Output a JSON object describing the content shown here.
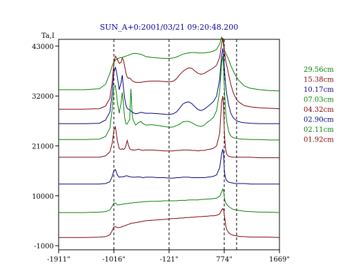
{
  "chart_data": {
    "type": "line",
    "title": "SUN_A+0:2001/03/21 09:20:48.200",
    "ylabel": "Ta,I",
    "xlabel": "",
    "xlim": [
      -1911,
      1669
    ],
    "ylim": [
      -1900,
      44500
    ],
    "x_ticks": [
      "-1911\"",
      "-1016\"",
      "-121\"",
      "774\"",
      "1669\""
    ],
    "x_tick_values": [
      -1911,
      -1016,
      -121,
      774,
      1669
    ],
    "y_ticks": [
      "43000",
      "32000",
      "21000",
      "10000",
      "-1000"
    ],
    "y_tick_values": [
      43000,
      32000,
      21000,
      10000,
      -1000
    ],
    "vlines": [
      -1016,
      -121,
      774,
      974
    ],
    "grid": false,
    "legend_position": "right",
    "x": [
      -1911,
      -1500,
      -1250,
      -1150,
      -1080,
      -1040,
      -1016,
      -990,
      -960,
      -930,
      -900,
      -880,
      -860,
      -840,
      -820,
      -800,
      -780,
      -760,
      -740,
      -720,
      -700,
      -660,
      -620,
      -580,
      -540,
      -500,
      -400,
      -300,
      -200,
      -121,
      -50,
      0,
      50,
      100,
      150,
      200,
      250,
      300,
      350,
      400,
      450,
      500,
      550,
      600,
      650,
      700,
      730,
      750,
      765,
      774,
      785,
      800,
      820,
      850,
      880,
      920,
      960,
      1000,
      1050,
      1100,
      1200,
      1350,
      1500,
      1669
    ],
    "series": [
      {
        "name": "29.56cm",
        "color": "#008000",
        "values": [
          33400,
          33400,
          33600,
          34600,
          37000,
          38800,
          39500,
          39900,
          40200,
          40400,
          40500,
          40500,
          40600,
          40700,
          40800,
          40900,
          41000,
          41100,
          41200,
          41300,
          41400,
          41400,
          41300,
          41200,
          41000,
          40700,
          40500,
          40400,
          40300,
          40300,
          40400,
          40600,
          40900,
          41200,
          41400,
          41500,
          41600,
          41600,
          41500,
          41500,
          41500,
          41600,
          41700,
          41900,
          42300,
          43500,
          45000,
          44300,
          42800,
          42100,
          41800,
          41400,
          40800,
          39900,
          38700,
          37500,
          36500,
          35600,
          34900,
          34200,
          33700,
          33400,
          33200,
          33100
        ]
      },
      {
        "name": "15.38cm",
        "color": "#800000",
        "values": [
          29100,
          29100,
          29200,
          29800,
          31500,
          35500,
          39200,
          40800,
          40100,
          39200,
          39400,
          40400,
          39900,
          38500,
          37100,
          36200,
          35900,
          36000,
          35700,
          35400,
          35200,
          35000,
          35000,
          35000,
          35100,
          35200,
          35300,
          35300,
          35200,
          35100,
          35300,
          35800,
          36700,
          37400,
          37900,
          38200,
          38100,
          37500,
          37000,
          36800,
          37000,
          37400,
          37800,
          38200,
          38800,
          40500,
          43500,
          44800,
          43600,
          42600,
          40900,
          39600,
          38400,
          36400,
          34600,
          32700,
          31600,
          30800,
          30300,
          29900,
          29600,
          29400,
          29300,
          29200
        ]
      },
      {
        "name": "10.17cm",
        "color": "#000080",
        "values": [
          25900,
          25900,
          26000,
          26700,
          28500,
          33000,
          37200,
          38400,
          36300,
          33400,
          34900,
          36600,
          33800,
          31500,
          30000,
          29300,
          29100,
          28900,
          28700,
          28500,
          28300,
          28100,
          28200,
          28400,
          28300,
          28200,
          28200,
          28100,
          28000,
          27900,
          28100,
          28500,
          29300,
          30200,
          30600,
          30700,
          30300,
          29600,
          29000,
          28800,
          29100,
          29600,
          30200,
          30800,
          32000,
          35700,
          40800,
          42500,
          40500,
          38800,
          36300,
          34000,
          32000,
          29800,
          28200,
          27200,
          26700,
          26400,
          26200,
          26100,
          26000,
          25900,
          25900,
          25900
        ]
      },
      {
        "name": "07.03cm",
        "color": "#008000",
        "values": [
          22400,
          22400,
          22500,
          23100,
          24900,
          29500,
          33900,
          34300,
          30800,
          28200,
          30400,
          32800,
          30200,
          27200,
          25900,
          25800,
          26400,
          26800,
          33600,
          28000,
          26600,
          25600,
          26100,
          26400,
          25900,
          25600,
          25700,
          25500,
          25300,
          25100,
          25200,
          25500,
          25800,
          26300,
          26400,
          26400,
          26100,
          25700,
          25400,
          25300,
          25600,
          26200,
          26700,
          27300,
          28800,
          33100,
          39200,
          40800,
          37400,
          34300,
          31200,
          28100,
          25900,
          24000,
          23200,
          22800,
          22700,
          22600,
          22500,
          22500,
          22400,
          22400,
          22300,
          22300
        ]
      },
      {
        "name": "04.32cm",
        "color": "#800000",
        "values": [
          18500,
          18500,
          18500,
          18800,
          19700,
          21800,
          24400,
          25200,
          22200,
          20400,
          20200,
          20400,
          20200,
          20400,
          21100,
          22200,
          21200,
          20400,
          20200,
          20100,
          20100,
          20100,
          20300,
          20100,
          20000,
          20100,
          20100,
          20000,
          19900,
          19900,
          19900,
          20000,
          20000,
          20100,
          20100,
          20100,
          20000,
          20000,
          19900,
          20000,
          20000,
          20200,
          20300,
          20500,
          21000,
          23800,
          30600,
          32000,
          29000,
          24800,
          21800,
          20000,
          19000,
          18700,
          18600,
          18500,
          18500,
          18500,
          18500,
          18500,
          18500,
          18400,
          18400,
          18400
        ]
      },
      {
        "name": "02.90cm",
        "color": "#000080",
        "values": [
          12600,
          12600,
          12600,
          12700,
          13100,
          14400,
          15500,
          15800,
          14600,
          14100,
          14200,
          14200,
          14200,
          14300,
          14400,
          14400,
          14300,
          14200,
          14200,
          14100,
          14100,
          14100,
          14200,
          14100,
          14000,
          14100,
          14100,
          14000,
          14000,
          13900,
          13900,
          14000,
          14000,
          14100,
          14100,
          14100,
          14000,
          14000,
          14000,
          14000,
          14000,
          14100,
          14200,
          14300,
          14600,
          16200,
          19200,
          20300,
          18800,
          16000,
          14500,
          13700,
          13300,
          13000,
          12900,
          12800,
          12700,
          12700,
          12700,
          12700,
          12600,
          12600,
          12600,
          12600
        ]
      },
      {
        "name": "02.11cm",
        "color": "#008000",
        "values": [
          6300,
          6300,
          6400,
          6500,
          6900,
          7800,
          8400,
          8400,
          8000,
          8000,
          8100,
          8100,
          8200,
          8200,
          8300,
          8300,
          8300,
          8400,
          8400,
          8400,
          8500,
          8500,
          8600,
          8600,
          8700,
          8700,
          8800,
          8800,
          8900,
          8900,
          8900,
          8900,
          9000,
          9000,
          9000,
          9100,
          9100,
          9100,
          9100,
          9200,
          9200,
          9300,
          9300,
          9400,
          9500,
          9900,
          10800,
          11500,
          11000,
          9800,
          8900,
          8400,
          8000,
          7600,
          7300,
          7000,
          6900,
          6800,
          6700,
          6600,
          6500,
          6400,
          6400,
          6300
        ]
      },
      {
        "name": "01.92cm",
        "color": "#800000",
        "values": [
          800,
          800,
          900,
          1000,
          1400,
          2400,
          3100,
          3200,
          3000,
          3000,
          3100,
          3200,
          3300,
          3400,
          3500,
          3600,
          3700,
          3800,
          3900,
          4000,
          4000,
          4100,
          4200,
          4300,
          4400,
          4500,
          4600,
          4700,
          4800,
          4900,
          5000,
          5000,
          5100,
          5100,
          5200,
          5200,
          5300,
          5300,
          5400,
          5400,
          5500,
          5500,
          5600,
          5600,
          5700,
          6000,
          6800,
          7200,
          6900,
          5900,
          4700,
          3300,
          2400,
          1800,
          1500,
          1300,
          1200,
          1100,
          1000,
          1000,
          900,
          900,
          900,
          800
        ]
      }
    ]
  },
  "colors": {
    "axis": "#000000",
    "title": "#0000a0",
    "vline": "#000000"
  }
}
